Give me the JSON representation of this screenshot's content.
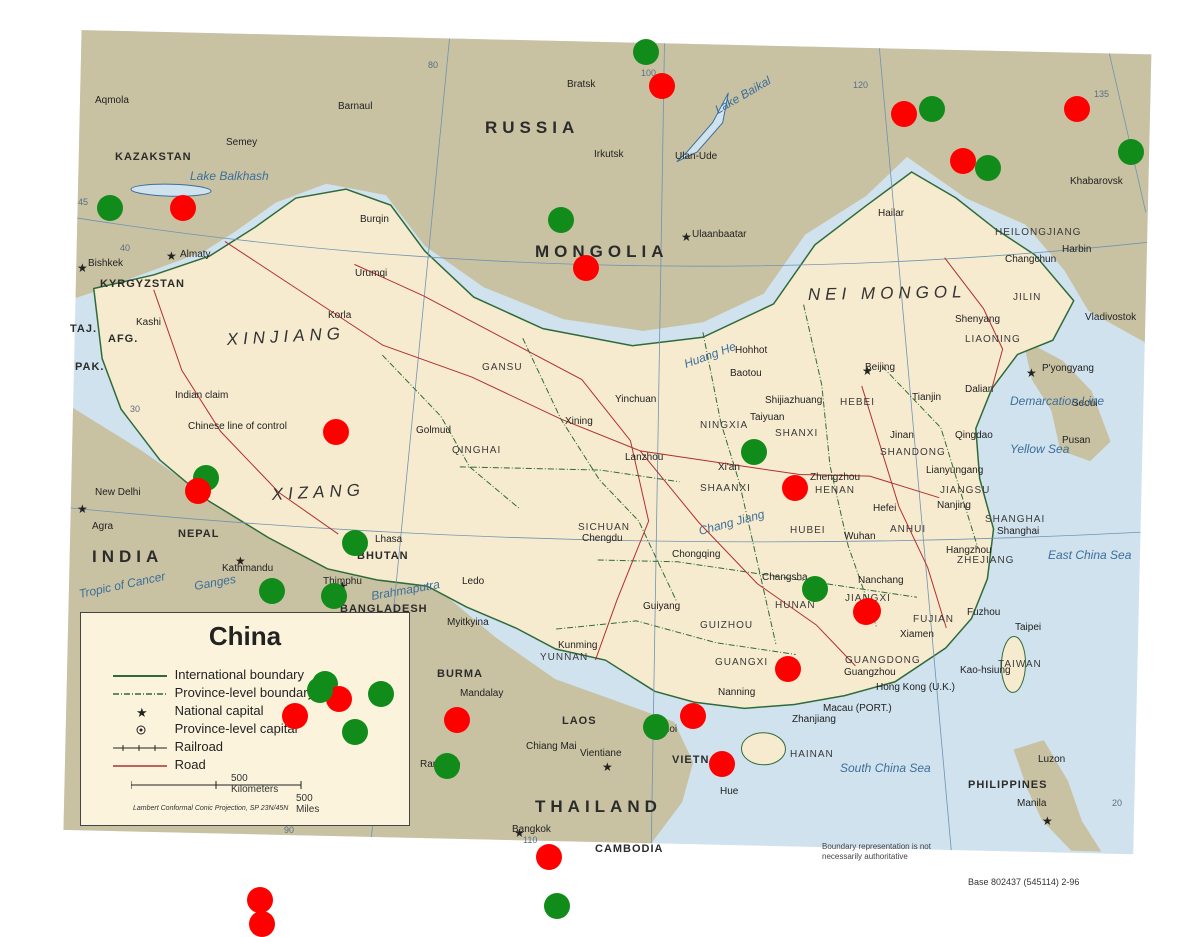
{
  "map": {
    "countries": [
      {
        "name": "RUSSIA",
        "cls": "country"
      },
      {
        "name": "MONGOLIA",
        "cls": "country"
      },
      {
        "name": "KAZAKSTAN",
        "cls": "country-sm"
      },
      {
        "name": "KYRGYZSTAN",
        "cls": "country-sm"
      },
      {
        "name": "INDIA",
        "cls": "country"
      },
      {
        "name": "NEPAL",
        "cls": "country-sm"
      },
      {
        "name": "BHUTAN",
        "cls": "country-sm"
      },
      {
        "name": "BANGLADESH",
        "cls": "country-sm"
      },
      {
        "name": "BURMA",
        "cls": "country-sm"
      },
      {
        "name": "LAOS",
        "cls": "country-sm"
      },
      {
        "name": "THAILAND",
        "cls": "country"
      },
      {
        "name": "VIETNAM",
        "cls": "country-sm"
      },
      {
        "name": "CAMBODIA",
        "cls": "country-sm"
      },
      {
        "name": "PHILIPPINES",
        "cls": "country-sm"
      },
      {
        "name": "TAJ.",
        "cls": "country-sm"
      },
      {
        "name": "AFG.",
        "cls": "country-sm"
      },
      {
        "name": "PAK.",
        "cls": "country-sm"
      }
    ],
    "regions": [
      "XINJIANG",
      "XIZANG",
      "NEI MONGOL"
    ],
    "provinces": [
      "GANSU",
      "QINGHAI",
      "SICHUAN",
      "YUNNAN",
      "GUIZHOU",
      "GUANGXI",
      "GUANGDONG",
      "HUNAN",
      "HUBEI",
      "HENAN",
      "SHAANXI",
      "SHANXI",
      "HEBEI",
      "SHANDONG",
      "JIANGSU",
      "ANHUI",
      "ZHEJIANG",
      "JIANGXI",
      "FUJIAN",
      "HEILONGJIANG",
      "JILIN",
      "LIAONING",
      "NINGXIA",
      "HAINAN",
      "TAIWAN",
      "SHANGHAI"
    ],
    "cities": [
      "Aqmola",
      "Barnaul",
      "Semey",
      "Bratsk",
      "Irkutsk",
      "Ulan-Ude",
      "Ulaanbaatar",
      "Almaty",
      "Bishkek",
      "Burqin",
      "Urumqi",
      "Kashi",
      "Korla",
      "Hailar",
      "Harbin",
      "Khabarovsk",
      "Changchun",
      "Shenyang",
      "Vladivostok",
      "Dalian",
      "P'yongyang",
      "Seoul",
      "Pusan",
      "Hohhot",
      "Baotou",
      "Beijing",
      "Tianjin",
      "Shijiazhuang",
      "Taiyuan",
      "Jinan",
      "Qingdao",
      "Yinchuan",
      "Xining",
      "Lanzhou",
      "Golmud",
      "Xi'an",
      "Zhengzhou",
      "Lianyungang",
      "Nanjing",
      "Hefei",
      "Wuhan",
      "Shanghai",
      "Hangzhou",
      "Nanchang",
      "Changsha",
      "Fuzhou",
      "Taipei",
      "Xiamen",
      "Guangzhou",
      "Kao-hsiung",
      "Hong Kong (U.K.)",
      "Macau (PORT.)",
      "Zhanjiang",
      "Nanning",
      "Guiyang",
      "Kunming",
      "Chengdu",
      "Chongqing",
      "Lhasa",
      "Thimphu",
      "Kathmandu",
      "New Delhi",
      "Agra",
      "Ledo",
      "Myitkyina",
      "Mandalay",
      "Rangoon",
      "Chiang Mai",
      "Vientiane",
      "Hanoi",
      "Hue",
      "Bangkok",
      "Manila",
      "Luzon"
    ],
    "waters": [
      "Lake Baikal",
      "Lake Balkhash",
      "Yellow Sea",
      "East China Sea",
      "South China Sea",
      "Huang He",
      "Chang Jiang",
      "Brahmaputra",
      "Ganges",
      "Tropic of Cancer",
      "Demarcation Line"
    ],
    "coords": [
      "80",
      "100",
      "120",
      "135",
      "90",
      "110",
      "45",
      "40",
      "30",
      "20"
    ],
    "misc": [
      "Indian claim",
      "Chinese line of control",
      "Lake Balkhash"
    ]
  },
  "legend": {
    "title": "China",
    "items": [
      {
        "label": "International boundary",
        "symbol": "intl"
      },
      {
        "label": "Province-level boundary",
        "symbol": "prov"
      },
      {
        "label": "National capital",
        "symbol": "star"
      },
      {
        "label": "Province-level capital",
        "symbol": "dot"
      },
      {
        "label": "Railroad",
        "symbol": "rail"
      },
      {
        "label": "Road",
        "symbol": "road"
      }
    ],
    "scale_km": "500 Kilometers",
    "scale_mi": "500 Miles",
    "projection": "Lambert Conformal Conic Projection, SP 23N/45N"
  },
  "notes": {
    "boundary": "Boundary representation is not necessarily authoritative",
    "base": "Base 802437 (545114) 2-96"
  },
  "colors": {
    "land_china": "#f7ebcf",
    "land_foreign": "#c8c2a2",
    "water": "#cfe2ee",
    "intl_boundary": "#2f6b3a",
    "road": "#b03030",
    "marker_red": "#ff0000",
    "marker_green": "#118c1a"
  },
  "markers": [
    {
      "color": "green",
      "id": "m1"
    },
    {
      "color": "red",
      "id": "m2"
    },
    {
      "color": "green",
      "id": "m3"
    },
    {
      "color": "red",
      "id": "m4"
    },
    {
      "color": "green",
      "id": "m5"
    },
    {
      "color": "red",
      "id": "m6"
    },
    {
      "color": "red",
      "id": "m7"
    },
    {
      "color": "green",
      "id": "m8"
    },
    {
      "color": "red",
      "id": "m9"
    },
    {
      "color": "green",
      "id": "m10"
    },
    {
      "color": "red",
      "id": "m11"
    },
    {
      "color": "green",
      "id": "m12"
    },
    {
      "color": "red",
      "id": "m13"
    },
    {
      "color": "green",
      "id": "m14"
    },
    {
      "color": "red",
      "id": "m15"
    },
    {
      "color": "green",
      "id": "m16"
    },
    {
      "color": "red",
      "id": "m17"
    },
    {
      "color": "green",
      "id": "m18"
    },
    {
      "color": "green",
      "id": "m19"
    },
    {
      "color": "red",
      "id": "m20"
    },
    {
      "color": "green",
      "id": "m21"
    },
    {
      "color": "green",
      "id": "m22"
    },
    {
      "color": "red",
      "id": "m23"
    },
    {
      "color": "green",
      "id": "m24"
    },
    {
      "color": "red",
      "id": "m25"
    },
    {
      "color": "green",
      "id": "m26"
    },
    {
      "color": "red",
      "id": "m27"
    },
    {
      "color": "green",
      "id": "m28"
    },
    {
      "color": "red",
      "id": "m29"
    },
    {
      "color": "green",
      "id": "m30"
    },
    {
      "color": "red",
      "id": "m31"
    },
    {
      "color": "red",
      "id": "m32"
    },
    {
      "color": "green",
      "id": "m33"
    },
    {
      "color": "red",
      "id": "m34"
    },
    {
      "color": "green",
      "id": "m35"
    },
    {
      "color": "red",
      "id": "m36"
    },
    {
      "color": "green",
      "id": "m37"
    },
    {
      "color": "red",
      "id": "m38"
    },
    {
      "color": "red",
      "id": "m39"
    }
  ]
}
